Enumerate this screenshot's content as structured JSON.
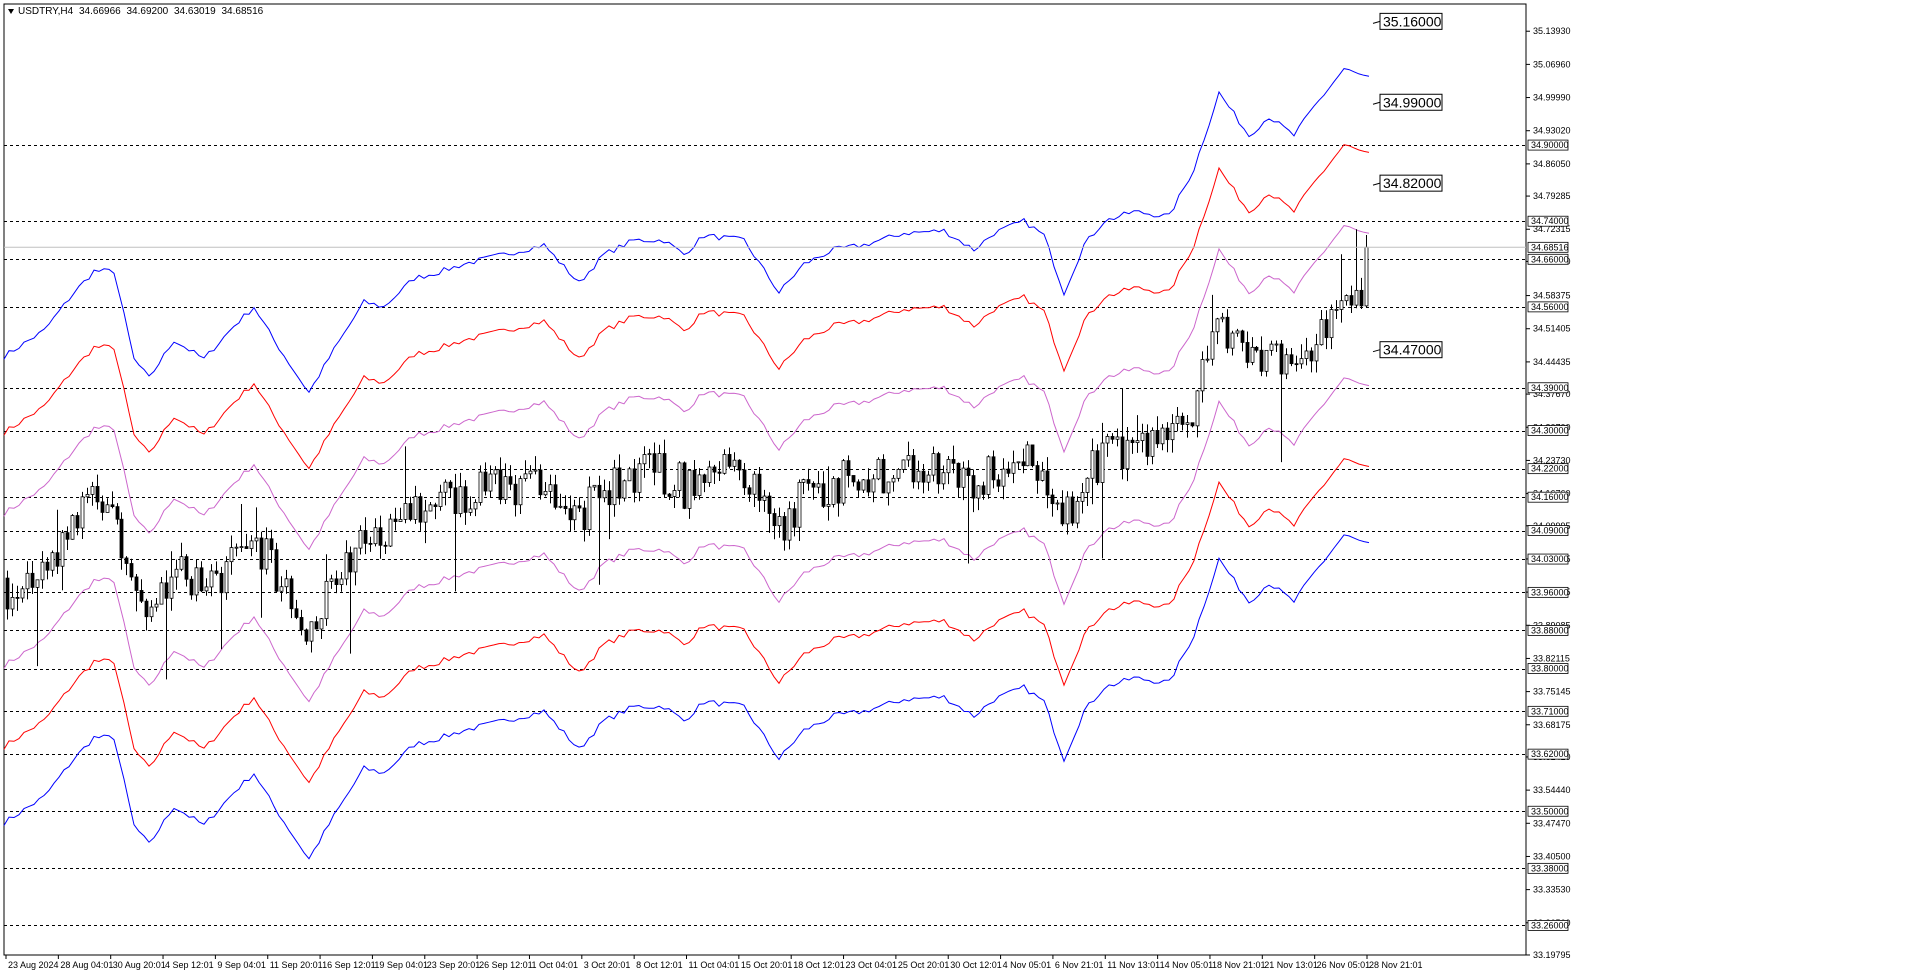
{
  "header": {
    "symbol": "USDTRY,H4",
    "open": "34.66966",
    "high": "34.69200",
    "low": "34.63019",
    "close": "34.68516"
  },
  "chart_data": {
    "type": "candlestick",
    "symbol": "USDTRY",
    "timeframe": "H4",
    "ylim": [
      33.1979,
      35.1965
    ],
    "price_ticks": [
      "35.13930",
      "35.06960",
      "34.99990",
      "34.93020",
      "34.86050",
      "34.79285",
      "34.72315",
      "34.65550",
      "34.58375",
      "34.51405",
      "34.44435",
      "34.37670",
      "34.30700",
      "34.23730",
      "34.16760",
      "34.09995",
      "34.03025",
      "33.96055",
      "33.89085",
      "33.82115",
      "33.75145",
      "33.68175",
      "33.61410",
      "33.54440",
      "33.47470",
      "33.40500",
      "33.33530",
      "33.26560",
      "33.19795"
    ],
    "x_labels": [
      "23 Aug 2024",
      "28 Aug 04:01",
      "30 Aug 20:01",
      "4 Sep 12:01",
      "9 Sep 04:01",
      "11 Sep 20:01",
      "16 Sep 12:01",
      "19 Sep 04:01",
      "23 Sep 20:01",
      "26 Sep 12:01",
      "1 Oct 04:01",
      "3 Oct 20:01",
      "8 Oct 12:01",
      "11 Oct 04:01",
      "15 Oct 20:01",
      "18 Oct 12:01",
      "23 Oct 04:01",
      "25 Oct 20:01",
      "30 Oct 12:01",
      "4 Nov 05:01",
      "6 Nov 21:01",
      "11 Nov 13:01",
      "14 Nov 05:01",
      "18 Nov 21:01",
      "21 Nov 13:01",
      "26 Nov 05:01",
      "28 Nov 21:01"
    ],
    "horizontal_levels": [
      "34.90000",
      "34.74000",
      "34.66000",
      "34.56000",
      "34.39000",
      "34.30000",
      "34.22000",
      "34.16000",
      "34.09000",
      "34.03000",
      "33.96000",
      "33.88000",
      "33.80000",
      "33.71000",
      "33.62000",
      "33.50000",
      "33.38000",
      "33.26000"
    ],
    "current_price": "34.68516",
    "band_labels": [
      {
        "text": "35.16000",
        "value": 35.16
      },
      {
        "text": "34.99000",
        "value": 34.99
      },
      {
        "text": "34.82000",
        "value": 34.82
      },
      {
        "text": "34.47000",
        "value": 34.47
      }
    ],
    "series": [
      {
        "color": "#0000ff",
        "offset": 0.49
      },
      {
        "color": "#ff0000",
        "offset": 0.33
      },
      {
        "color": "#cc66cc",
        "offset": 0.16
      },
      {
        "color": "#cc66cc",
        "offset": -0.16
      },
      {
        "color": "#ff0000",
        "offset": -0.33
      },
      {
        "color": "#0000ff",
        "offset": -0.49
      }
    ],
    "mid_line": [
      [
        0,
        33.966
      ],
      [
        40,
        34.02
      ],
      [
        70,
        34.1
      ],
      [
        90,
        34.145
      ],
      [
        110,
        34.145
      ],
      [
        130,
        33.96
      ],
      [
        145,
        33.92
      ],
      [
        170,
        34.0
      ],
      [
        200,
        33.96
      ],
      [
        230,
        34.03
      ],
      [
        250,
        34.07
      ],
      [
        270,
        34.0
      ],
      [
        295,
        33.92
      ],
      [
        305,
        33.89
      ],
      [
        330,
        33.98
      ],
      [
        360,
        34.08
      ],
      [
        380,
        34.07
      ],
      [
        410,
        34.13
      ],
      [
        430,
        34.14
      ],
      [
        460,
        34.16
      ],
      [
        500,
        34.18
      ],
      [
        540,
        34.2
      ],
      [
        575,
        34.12
      ],
      [
        600,
        34.18
      ],
      [
        630,
        34.21
      ],
      [
        660,
        34.21
      ],
      [
        680,
        34.18
      ],
      [
        700,
        34.22
      ],
      [
        740,
        34.21
      ],
      [
        775,
        34.1
      ],
      [
        800,
        34.16
      ],
      [
        830,
        34.19
      ],
      [
        860,
        34.2
      ],
      [
        900,
        34.225
      ],
      [
        940,
        34.23
      ],
      [
        970,
        34.19
      ],
      [
        990,
        34.225
      ],
      [
        1020,
        34.25
      ],
      [
        1040,
        34.22
      ],
      [
        1060,
        34.1
      ],
      [
        1080,
        34.2
      ],
      [
        1100,
        34.25
      ],
      [
        1130,
        34.27
      ],
      [
        1165,
        34.26
      ],
      [
        1190,
        34.36
      ],
      [
        1215,
        34.52
      ],
      [
        1245,
        34.43
      ],
      [
        1265,
        34.47
      ],
      [
        1290,
        34.43
      ],
      [
        1310,
        34.49
      ],
      [
        1340,
        34.57
      ],
      [
        1365,
        34.55
      ]
    ],
    "candles_summary": {
      "count": 274,
      "range_low": 33.66,
      "range_high": 34.692,
      "last_close": 34.68516
    }
  }
}
